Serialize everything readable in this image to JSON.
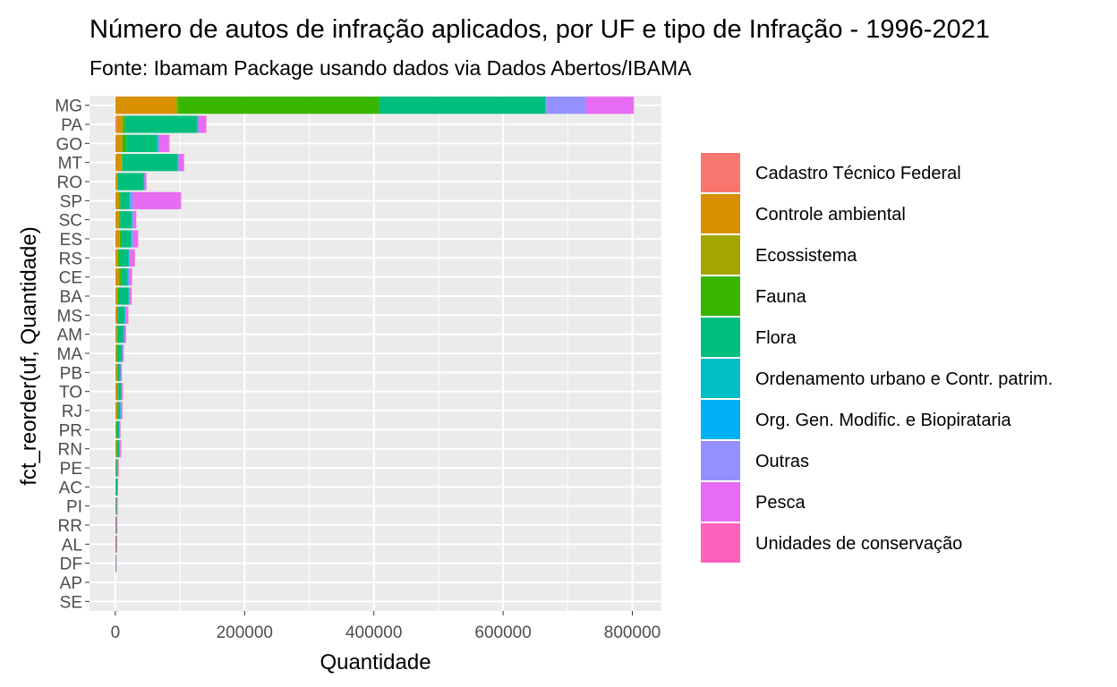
{
  "chart_data": {
    "type": "bar",
    "orientation": "horizontal",
    "stacked": true,
    "title": "Número de autos de infração aplicados, por UF e tipo de Infração - 1996-2021",
    "subtitle": "Fonte: Ibamam Package usando dados via Dados Abertos/IBAMA",
    "xlabel": "Quantidade",
    "ylabel": "fct_reorder(uf, Quantidade)",
    "xlim": [
      -40000,
      845000
    ],
    "xticks": [
      0,
      200000,
      400000,
      600000,
      800000
    ],
    "xtick_labels": [
      "0",
      "200000",
      "400000",
      "600000",
      "800000"
    ],
    "grid": true,
    "legend_position": "right",
    "categories": [
      "MG",
      "PA",
      "GO",
      "MT",
      "RO",
      "SP",
      "SC",
      "ES",
      "RS",
      "CE",
      "BA",
      "MS",
      "AM",
      "MA",
      "PB",
      "TO",
      "RJ",
      "PR",
      "RN",
      "PE",
      "AC",
      "PI",
      "RR",
      "AL",
      "DF",
      "AP",
      "SE"
    ],
    "series": [
      {
        "name": "Cadastro Técnico Federal",
        "color": "#F8766D",
        "values": [
          0,
          2000,
          0,
          0,
          0,
          0,
          0,
          0,
          0,
          0,
          0,
          0,
          0,
          0,
          0,
          0,
          0,
          0,
          0,
          0,
          0,
          0,
          0,
          0,
          0,
          0,
          0
        ]
      },
      {
        "name": "Controle ambiental",
        "color": "#D89000",
        "values": [
          93000,
          8000,
          9000,
          9000,
          2500,
          5000,
          5000,
          6000,
          3000,
          5000,
          2500,
          3000,
          2000,
          1500,
          2000,
          3000,
          2500,
          1000,
          1500,
          500,
          400,
          400,
          300,
          300,
          300,
          0,
          0
        ]
      },
      {
        "name": "Ecossistema",
        "color": "#A3A500",
        "values": [
          4000,
          2000,
          2000,
          1000,
          500,
          1000,
          1000,
          1000,
          1000,
          1000,
          1000,
          500,
          500,
          500,
          500,
          500,
          500,
          500,
          500,
          200,
          200,
          200,
          200,
          200,
          100,
          0,
          0
        ]
      },
      {
        "name": "Fauna",
        "color": "#39B600",
        "values": [
          311000,
          3000,
          6000,
          1000,
          1000,
          2000,
          1500,
          3000,
          3000,
          3000,
          1500,
          1000,
          1000,
          1000,
          1500,
          1000,
          1500,
          500,
          1000,
          500,
          200,
          300,
          100,
          200,
          100,
          0,
          0
        ]
      },
      {
        "name": "Flora",
        "color": "#00BF7D",
        "values": [
          257000,
          111000,
          48000,
          85000,
          40000,
          13000,
          17000,
          14000,
          13000,
          9000,
          15000,
          10000,
          9000,
          7000,
          3000,
          4000,
          3000,
          3000,
          3000,
          1500,
          1500,
          1000,
          800,
          600,
          200,
          0,
          0
        ]
      },
      {
        "name": "Ordenamento urbano e Contr. patrim.",
        "color": "#00BFC4",
        "values": [
          1000,
          1000,
          500,
          500,
          500,
          1500,
          1500,
          1500,
          1000,
          1500,
          1000,
          500,
          500,
          500,
          500,
          500,
          500,
          500,
          500,
          500,
          500,
          200,
          200,
          100,
          100,
          0,
          0
        ]
      },
      {
        "name": "Org. Gen. Modific. e Biopirataria",
        "color": "#00B0F6",
        "values": [
          500,
          500,
          500,
          500,
          200,
          500,
          500,
          500,
          500,
          500,
          500,
          300,
          300,
          200,
          200,
          200,
          200,
          300,
          200,
          200,
          100,
          100,
          100,
          100,
          100,
          0,
          0
        ]
      },
      {
        "name": "Outras",
        "color": "#9590FF",
        "values": [
          62000,
          1500,
          2000,
          1500,
          500,
          5000,
          1000,
          1500,
          1000,
          1000,
          1000,
          1000,
          500,
          500,
          500,
          500,
          500,
          500,
          500,
          500,
          200,
          200,
          200,
          100,
          100,
          0,
          0
        ]
      },
      {
        "name": "Pesca",
        "color": "#E76BF3",
        "values": [
          73000,
          11000,
          15000,
          7000,
          2000,
          73000,
          4000,
          7000,
          7000,
          4000,
          2000,
          3000,
          2000,
          1000,
          1000,
          1000,
          1500,
          1000,
          1000,
          500,
          300,
          300,
          300,
          200,
          100,
          0,
          0
        ]
      },
      {
        "name": "Unidades de conservação",
        "color": "#FF62BC",
        "values": [
          500,
          500,
          300,
          300,
          300,
          500,
          300,
          300,
          300,
          300,
          300,
          200,
          200,
          200,
          200,
          200,
          200,
          200,
          200,
          100,
          100,
          100,
          100,
          100,
          0,
          0,
          0
        ]
      }
    ]
  }
}
